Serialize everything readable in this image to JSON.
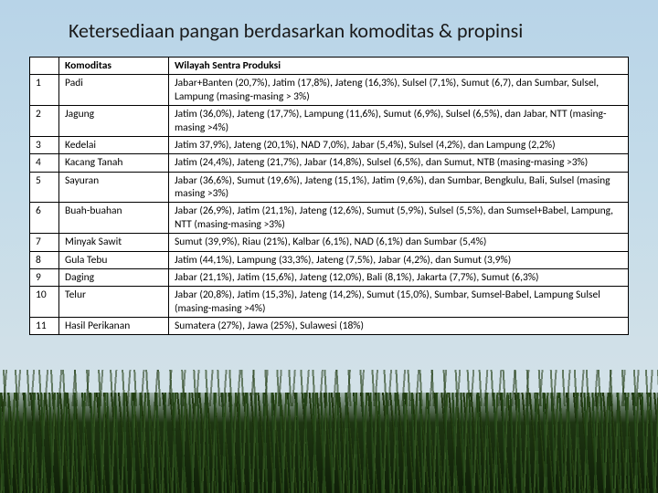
{
  "title": "Ketersediaan pangan berdasarkan komoditas & propinsi",
  "table": {
    "columns": [
      "",
      "Komoditas",
      "Wilayah Sentra Produksi"
    ],
    "rows": [
      {
        "n": "1",
        "komoditas": "Padi",
        "wilayah": "Jabar+Banten (20,7%), Jatim (17,8%), Jateng (16,3%), Sulsel (7,1%), Sumut (6,7), dan Sumbar, Sulsel, Lampung (masing-masing > 3%)"
      },
      {
        "n": "2",
        "komoditas": "Jagung",
        "wilayah": "Jatim (36,0%), Jateng (17,7%), Lampung (11,6%), Sumut (6,9%), Sulsel (6,5%), dan Jabar, NTT (masing-masing >4%)"
      },
      {
        "n": "3",
        "komoditas": "Kedelai",
        "wilayah": "Jatim 37,9%), Jateng (20,1%), NAD 7,0%), Jabar (5,4%), Sulsel (4,2%), dan Lampung (2,2%)"
      },
      {
        "n": "4",
        "komoditas": "Kacang Tanah",
        "wilayah": "Jatim (24,4%), Jateng (21,7%), Jabar (14,8%), Sulsel (6,5%), dan Sumut, NTB (masing-masing >3%)"
      },
      {
        "n": "5",
        "komoditas": "Sayuran",
        "wilayah": "Jabar (36,6%), Sumut (19,6%), Jateng (15,1%), Jatim (9,6%), dan Sumbar, Bengkulu, Bali, Sulsel (masing masing >3%)"
      },
      {
        "n": "6",
        "komoditas": "Buah-buahan",
        "wilayah": "Jabar (26,9%), Jatim (21,1%), Jateng (12,6%), Sumut (5,9%), Sulsel (5,5%), dan Sumsel+Babel, Lampung, NTT (masing-masing >3%)"
      },
      {
        "n": "7",
        "komoditas": "Minyak Sawit",
        "wilayah": "Sumut (39,9%), Riau (21%), Kalbar (6,1%), NAD (6,1%) dan Sumbar (5,4%)"
      },
      {
        "n": "8",
        "komoditas": "Gula Tebu",
        "wilayah": "Jatim (44,1%), Lampung (33,3%), Jateng (7,5%), Jabar (4,2%), dan Sumut (3,9%)"
      },
      {
        "n": "9",
        "komoditas": "Daging",
        "wilayah": "Jabar (21,1%), Jatim (15,6%), Jateng (12,0%), Bali (8,1%), Jakarta (7,7%), Sumut (6,3%)"
      },
      {
        "n": "10",
        "komoditas": "Telur",
        "wilayah": "Jabar (20,8%), Jatim (15,3%), Jateng (14,2%), Sumut (15,0%), Sumbar, Sumsel-Babel, Lampung Sulsel (masing-masing >4%)"
      },
      {
        "n": "11",
        "komoditas": "Hasil Perikanan",
        "wilayah": "Sumatera (27%), Jawa (25%), Sulawesi (18%)"
      }
    ]
  }
}
